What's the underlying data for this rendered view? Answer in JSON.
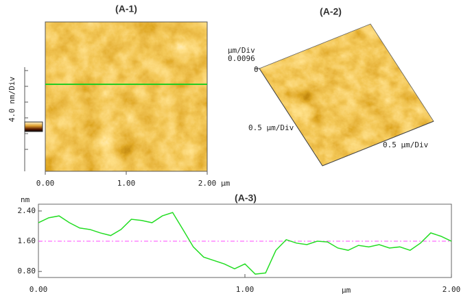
{
  "chart_data": [
    {
      "type": "image",
      "title": "(A-1)",
      "colorbar_label": "4.0 nm/Div",
      "xlabel": "µm",
      "xlim": [
        0,
        2
      ],
      "xticks": [
        {
          "value": 0,
          "label": "0.00"
        },
        {
          "value": 1,
          "label": "1.00"
        },
        {
          "value": 2,
          "label": "2.00"
        }
      ],
      "profile_line_color": "#22cc22"
    },
    {
      "type": "surface",
      "title": "(A-2)",
      "z_label": "µm/Div",
      "z_ticks": [
        0.0096,
        0
      ],
      "x_label": "0.5 µm/Div",
      "y_label": "0.5 µm/Div"
    },
    {
      "type": "line",
      "title": "(A-3)",
      "ylabel": "nm",
      "xlabel": "µm",
      "xlim": [
        0,
        2
      ],
      "xticks": [
        {
          "value": 0,
          "label": "0.00"
        },
        {
          "value": 1,
          "label": "1.00"
        },
        {
          "value": 2,
          "label": "2.00"
        }
      ],
      "ylim": [
        0.64,
        2.58
      ],
      "yticks": [
        {
          "value": 0.8,
          "label": "0.80"
        },
        {
          "value": 1.6,
          "label": "1.60"
        },
        {
          "value": 2.4,
          "label": "2.40"
        }
      ],
      "reference_line": {
        "value": 1.6,
        "color": "#ff44ff"
      },
      "x": [
        0,
        0.05,
        0.1,
        0.15,
        0.2,
        0.25,
        0.3,
        0.35,
        0.4,
        0.45,
        0.5,
        0.55,
        0.6,
        0.65,
        0.7,
        0.75,
        0.8,
        0.85,
        0.9,
        0.95,
        1.0,
        1.05,
        1.1,
        1.15,
        1.2,
        1.25,
        1.3,
        1.35,
        1.4,
        1.45,
        1.5,
        1.55,
        1.6,
        1.65,
        1.7,
        1.75,
        1.8,
        1.85,
        1.9,
        1.95,
        2.0
      ],
      "series": [
        {
          "color": "#22dd22",
          "values": [
            2.09,
            2.22,
            2.27,
            2.09,
            1.95,
            1.91,
            1.82,
            1.75,
            1.91,
            2.18,
            2.15,
            2.09,
            2.27,
            2.36,
            1.91,
            1.45,
            1.18,
            1.09,
            1.0,
            0.87,
            1.0,
            0.73,
            0.76,
            1.36,
            1.64,
            1.55,
            1.51,
            1.6,
            1.58,
            1.42,
            1.36,
            1.49,
            1.45,
            1.51,
            1.42,
            1.45,
            1.36,
            1.55,
            1.82,
            1.73,
            1.6
          ]
        }
      ]
    }
  ]
}
